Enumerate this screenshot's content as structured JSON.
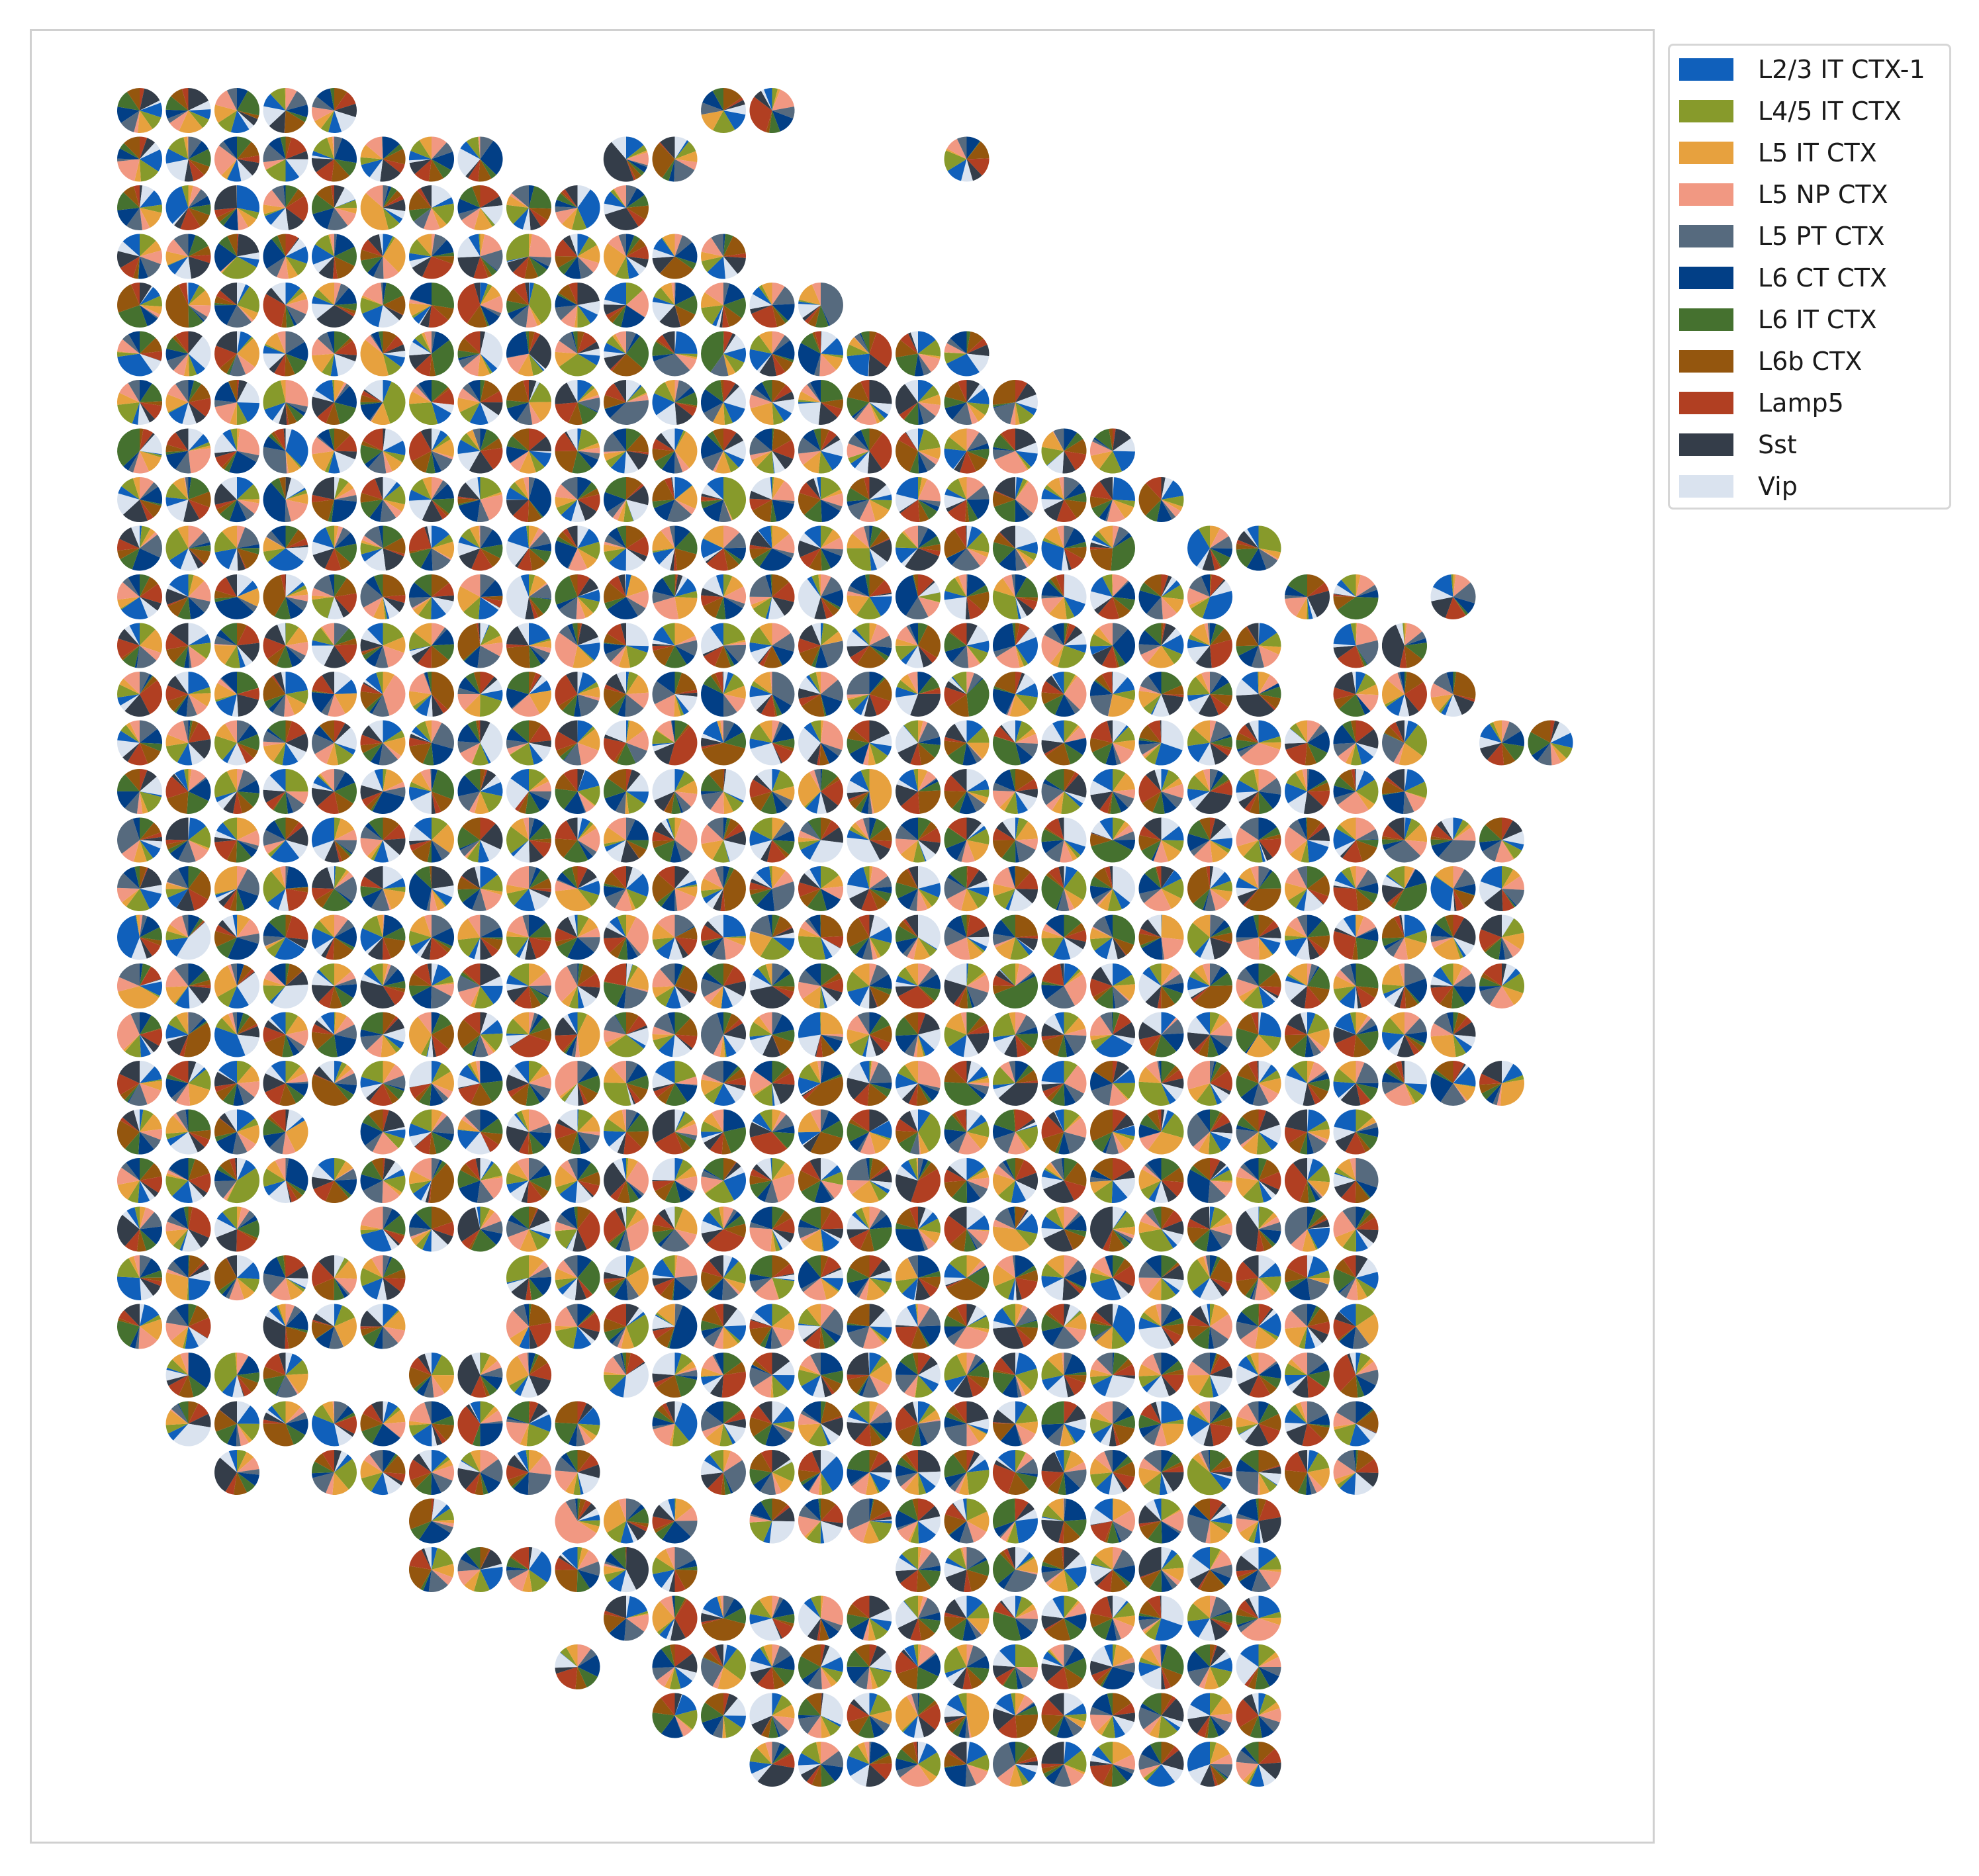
{
  "chart_data": {
    "type": "spatial-scatterpie",
    "title": "",
    "xlabel": "",
    "ylabel": "",
    "axes_visible": false,
    "legend_position": "upper right outside",
    "legend": [
      {
        "label": "L2/3 IT CTX-1",
        "color": "#1060bb"
      },
      {
        "label": "L4/5 IT CTX",
        "color": "#879a2b"
      },
      {
        "label": "L5 IT CTX",
        "color": "#e7a13e"
      },
      {
        "label": "L5 NP CTX",
        "color": "#f19882"
      },
      {
        "label": "L5 PT CTX",
        "color": "#566a7e"
      },
      {
        "label": "L6 CT CTX",
        "color": "#023f86"
      },
      {
        "label": "L6 IT CTX",
        "color": "#45712f"
      },
      {
        "label": "L6b CTX",
        "color": "#94560e"
      },
      {
        "label": "Lamp5",
        "color": "#b13f22"
      },
      {
        "label": "Sst",
        "color": "#343d49"
      },
      {
        "label": "Vip",
        "color": "#dae3ef"
      }
    ],
    "grid": {
      "columns": 30,
      "rows": 36
    },
    "spot_rows": [
      {
        "row": 0,
        "cols": [
          [
            0,
            4
          ],
          [
            12,
            13
          ]
        ]
      },
      {
        "row": 1,
        "cols": [
          [
            0,
            7
          ],
          [
            10,
            11
          ],
          [
            17,
            17
          ]
        ]
      },
      {
        "row": 2,
        "cols": [
          [
            0,
            10
          ]
        ]
      },
      {
        "row": 3,
        "cols": [
          [
            0,
            12
          ]
        ]
      },
      {
        "row": 4,
        "cols": [
          [
            0,
            14
          ]
        ]
      },
      {
        "row": 5,
        "cols": [
          [
            0,
            17
          ]
        ]
      },
      {
        "row": 6,
        "cols": [
          [
            0,
            18
          ]
        ]
      },
      {
        "row": 7,
        "cols": [
          [
            0,
            20
          ]
        ]
      },
      {
        "row": 8,
        "cols": [
          [
            0,
            21
          ]
        ]
      },
      {
        "row": 9,
        "cols": [
          [
            0,
            20
          ],
          [
            22,
            23
          ]
        ]
      },
      {
        "row": 10,
        "cols": [
          [
            0,
            22
          ],
          [
            24,
            25
          ],
          [
            27,
            27
          ]
        ]
      },
      {
        "row": 11,
        "cols": [
          [
            0,
            23
          ],
          [
            25,
            26
          ]
        ]
      },
      {
        "row": 12,
        "cols": [
          [
            0,
            23
          ],
          [
            25,
            27
          ]
        ]
      },
      {
        "row": 13,
        "cols": [
          [
            0,
            26
          ],
          [
            28,
            29
          ]
        ]
      },
      {
        "row": 14,
        "cols": [
          [
            0,
            26
          ]
        ]
      },
      {
        "row": 15,
        "cols": [
          [
            0,
            28
          ]
        ]
      },
      {
        "row": 16,
        "cols": [
          [
            0,
            28
          ]
        ]
      },
      {
        "row": 17,
        "cols": [
          [
            0,
            28
          ]
        ]
      },
      {
        "row": 18,
        "cols": [
          [
            0,
            28
          ]
        ]
      },
      {
        "row": 19,
        "cols": [
          [
            0,
            27
          ]
        ]
      },
      {
        "row": 20,
        "cols": [
          [
            0,
            28
          ]
        ]
      },
      {
        "row": 21,
        "cols": [
          [
            0,
            3
          ],
          [
            5,
            25
          ]
        ]
      },
      {
        "row": 22,
        "cols": [
          [
            0,
            25
          ]
        ]
      },
      {
        "row": 23,
        "cols": [
          [
            0,
            2
          ],
          [
            5,
            25
          ]
        ]
      },
      {
        "row": 24,
        "cols": [
          [
            0,
            5
          ],
          [
            8,
            25
          ]
        ]
      },
      {
        "row": 25,
        "cols": [
          [
            0,
            1
          ],
          [
            3,
            5
          ],
          [
            8,
            25
          ]
        ]
      },
      {
        "row": 26,
        "cols": [
          [
            1,
            3
          ],
          [
            6,
            8
          ],
          [
            10,
            25
          ]
        ]
      },
      {
        "row": 27,
        "cols": [
          [
            1,
            9
          ],
          [
            11,
            25
          ]
        ]
      },
      {
        "row": 28,
        "cols": [
          [
            2,
            2
          ],
          [
            4,
            9
          ],
          [
            12,
            25
          ]
        ]
      },
      {
        "row": 29,
        "cols": [
          [
            6,
            6
          ],
          [
            9,
            11
          ],
          [
            13,
            23
          ]
        ]
      },
      {
        "row": 30,
        "cols": [
          [
            6,
            11
          ],
          [
            16,
            23
          ]
        ]
      },
      {
        "row": 31,
        "cols": [
          [
            10,
            23
          ]
        ]
      },
      {
        "row": 32,
        "cols": [
          [
            9,
            9
          ],
          [
            11,
            23
          ]
        ]
      },
      {
        "row": 33,
        "cols": [
          [
            11,
            16
          ],
          [
            17,
            23
          ]
        ]
      },
      {
        "row": 34,
        "cols": [
          [
            13,
            23
          ]
        ]
      }
    ]
  }
}
